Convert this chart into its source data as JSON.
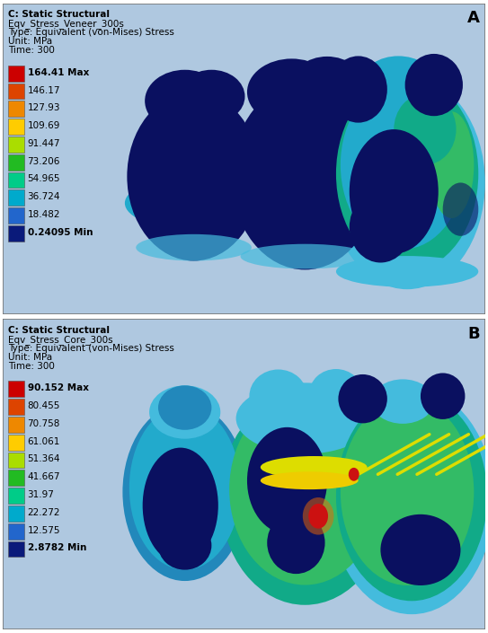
{
  "panel_A": {
    "title_line1": "C: Static Structural",
    "title_line2": "Eqv_Stress_Veneer_300s",
    "title_line3": "Type: Equivalent (von-Mises) Stress",
    "title_line4": "Unit: MPa",
    "title_line5": "Time: 300",
    "label": "A",
    "legend_values": [
      "164.41 Max",
      "146.17",
      "127.93",
      "109.69",
      "91.447",
      "73.206",
      "54.965",
      "36.724",
      "18.482",
      "0.24095 Min"
    ],
    "colors": [
      "#cc0000",
      "#dd4400",
      "#ee8800",
      "#ffcc00",
      "#aadd00",
      "#22bb22",
      "#00cc88",
      "#00aacc",
      "#2266cc",
      "#0a1a7a"
    ],
    "bg_color": "#afc8e0"
  },
  "panel_B": {
    "title_line1": "C: Static Structural",
    "title_line2": "Eqv_Stress_Core_300s",
    "title_line3": "Type: Equivalent (von-Mises) Stress",
    "title_line4": "Unit: MPa",
    "title_line5": "Time: 300",
    "label": "B",
    "legend_values": [
      "90.152 Max",
      "80.455",
      "70.758",
      "61.061",
      "51.364",
      "41.667",
      "31.97",
      "22.272",
      "12.575",
      "2.8782 Min"
    ],
    "colors": [
      "#cc0000",
      "#dd4400",
      "#ee8800",
      "#ffcc00",
      "#aadd00",
      "#22bb22",
      "#00cc88",
      "#00aacc",
      "#2266cc",
      "#0a1a7a"
    ],
    "bg_color": "#afc8e0"
  },
  "border_color": "#777777",
  "fig_bg": "#ffffff",
  "title_fontsize": 7.5,
  "label_fontsize": 13,
  "legend_fontsize": 7.5,
  "navy": "#0a1060",
  "cyan_light": "#44bbdd",
  "cyan_mid": "#22aacc",
  "teal": "#11aa88",
  "green": "#33bb66",
  "yellow": "#dddd00",
  "red_hot": "#cc1111"
}
